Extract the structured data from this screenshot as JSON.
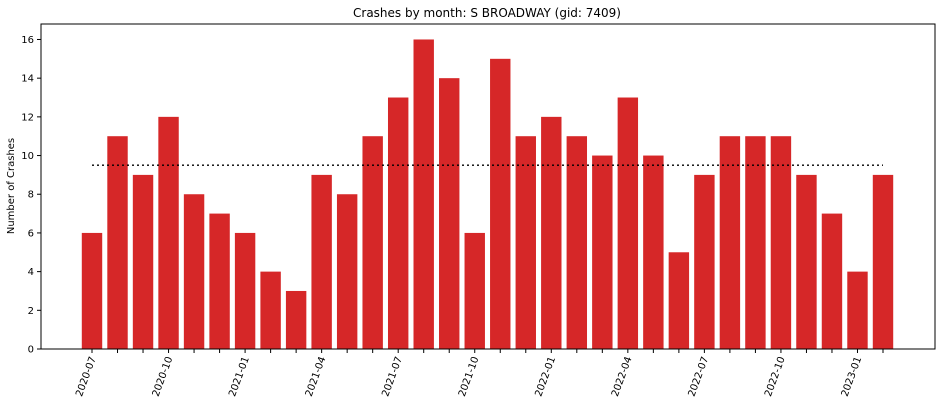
{
  "chart_data": {
    "type": "bar",
    "title": "Crashes by month: S BROADWAY (gid: 7409)",
    "xlabel": "",
    "ylabel": "Number of Crashes",
    "categories": [
      "2020-07",
      "2020-08",
      "2020-09",
      "2020-10",
      "2020-11",
      "2020-12",
      "2021-01",
      "2021-02",
      "2021-03",
      "2021-04",
      "2021-05",
      "2021-06",
      "2021-07",
      "2021-08",
      "2021-09",
      "2021-10",
      "2021-11",
      "2021-12",
      "2022-01",
      "2022-02",
      "2022-03",
      "2022-04",
      "2022-05",
      "2022-06",
      "2022-07",
      "2022-08",
      "2022-09",
      "2022-10",
      "2022-11",
      "2022-12",
      "2023-01",
      "2023-02"
    ],
    "values": [
      6,
      11,
      9,
      12,
      8,
      7,
      6,
      4,
      3,
      9,
      8,
      11,
      13,
      16,
      14,
      6,
      15,
      11,
      12,
      11,
      10,
      13,
      10,
      5,
      9,
      11,
      11,
      11,
      9,
      7,
      4,
      9
    ],
    "x_tick_labels": [
      "2020-07",
      "2020-10",
      "2021-01",
      "2021-04",
      "2021-07",
      "2021-10",
      "2022-01",
      "2022-04",
      "2022-07",
      "2022-10",
      "2023-01"
    ],
    "y_ticks": [
      0,
      2,
      4,
      6,
      8,
      10,
      12,
      14,
      16
    ],
    "ylim": [
      0,
      16.8
    ],
    "mean_line": 9.5,
    "bar_color": "#d62728",
    "mean_line_color": "#000000",
    "grid": false
  }
}
